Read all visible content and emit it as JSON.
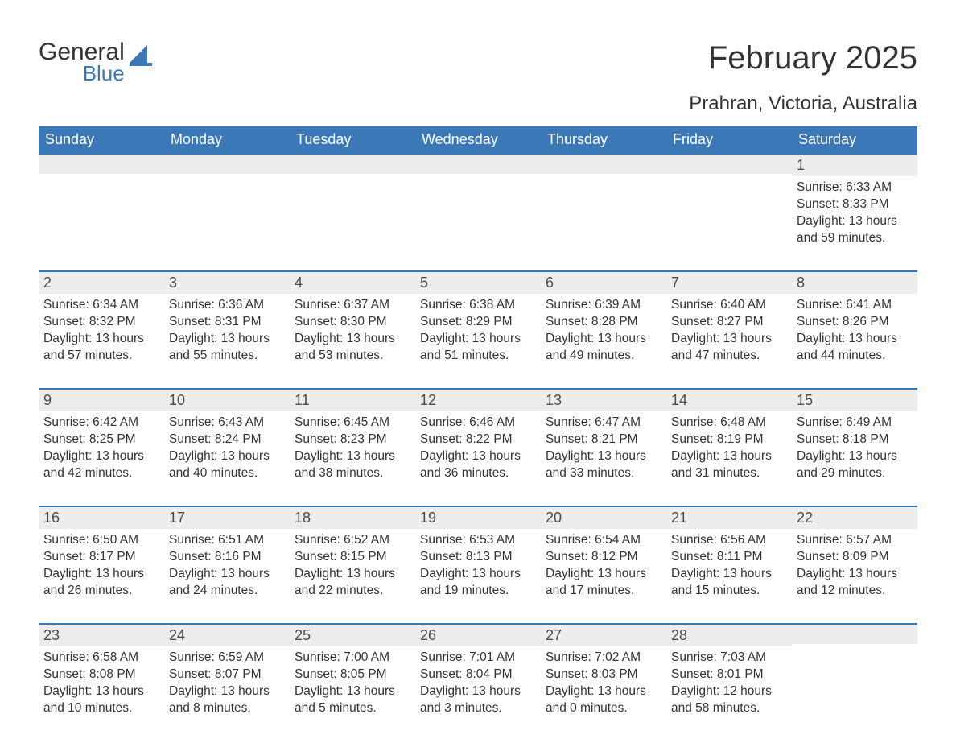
{
  "logo": {
    "top": "General",
    "bottom": "Blue",
    "icon_color": "#3a78b8"
  },
  "title": "February 2025",
  "location": "Prahran, Victoria, Australia",
  "colors": {
    "header_bg": "#3a78b8",
    "header_text": "#ffffff",
    "daynum_bg": "#ededed",
    "row_border": "#3a78b8",
    "text": "#333333",
    "background": "#ffffff"
  },
  "typography": {
    "title_fontsize": 40,
    "location_fontsize": 24,
    "header_fontsize": 18,
    "daynum_fontsize": 18,
    "detail_fontsize": 15.5
  },
  "weekdays": [
    "Sunday",
    "Monday",
    "Tuesday",
    "Wednesday",
    "Thursday",
    "Friday",
    "Saturday"
  ],
  "weeks": [
    [
      null,
      null,
      null,
      null,
      null,
      null,
      {
        "d": "1",
        "sr": "Sunrise: 6:33 AM",
        "ss": "Sunset: 8:33 PM",
        "dl1": "Daylight: 13 hours",
        "dl2": "and 59 minutes."
      }
    ],
    [
      {
        "d": "2",
        "sr": "Sunrise: 6:34 AM",
        "ss": "Sunset: 8:32 PM",
        "dl1": "Daylight: 13 hours",
        "dl2": "and 57 minutes."
      },
      {
        "d": "3",
        "sr": "Sunrise: 6:36 AM",
        "ss": "Sunset: 8:31 PM",
        "dl1": "Daylight: 13 hours",
        "dl2": "and 55 minutes."
      },
      {
        "d": "4",
        "sr": "Sunrise: 6:37 AM",
        "ss": "Sunset: 8:30 PM",
        "dl1": "Daylight: 13 hours",
        "dl2": "and 53 minutes."
      },
      {
        "d": "5",
        "sr": "Sunrise: 6:38 AM",
        "ss": "Sunset: 8:29 PM",
        "dl1": "Daylight: 13 hours",
        "dl2": "and 51 minutes."
      },
      {
        "d": "6",
        "sr": "Sunrise: 6:39 AM",
        "ss": "Sunset: 8:28 PM",
        "dl1": "Daylight: 13 hours",
        "dl2": "and 49 minutes."
      },
      {
        "d": "7",
        "sr": "Sunrise: 6:40 AM",
        "ss": "Sunset: 8:27 PM",
        "dl1": "Daylight: 13 hours",
        "dl2": "and 47 minutes."
      },
      {
        "d": "8",
        "sr": "Sunrise: 6:41 AM",
        "ss": "Sunset: 8:26 PM",
        "dl1": "Daylight: 13 hours",
        "dl2": "and 44 minutes."
      }
    ],
    [
      {
        "d": "9",
        "sr": "Sunrise: 6:42 AM",
        "ss": "Sunset: 8:25 PM",
        "dl1": "Daylight: 13 hours",
        "dl2": "and 42 minutes."
      },
      {
        "d": "10",
        "sr": "Sunrise: 6:43 AM",
        "ss": "Sunset: 8:24 PM",
        "dl1": "Daylight: 13 hours",
        "dl2": "and 40 minutes."
      },
      {
        "d": "11",
        "sr": "Sunrise: 6:45 AM",
        "ss": "Sunset: 8:23 PM",
        "dl1": "Daylight: 13 hours",
        "dl2": "and 38 minutes."
      },
      {
        "d": "12",
        "sr": "Sunrise: 6:46 AM",
        "ss": "Sunset: 8:22 PM",
        "dl1": "Daylight: 13 hours",
        "dl2": "and 36 minutes."
      },
      {
        "d": "13",
        "sr": "Sunrise: 6:47 AM",
        "ss": "Sunset: 8:21 PM",
        "dl1": "Daylight: 13 hours",
        "dl2": "and 33 minutes."
      },
      {
        "d": "14",
        "sr": "Sunrise: 6:48 AM",
        "ss": "Sunset: 8:19 PM",
        "dl1": "Daylight: 13 hours",
        "dl2": "and 31 minutes."
      },
      {
        "d": "15",
        "sr": "Sunrise: 6:49 AM",
        "ss": "Sunset: 8:18 PM",
        "dl1": "Daylight: 13 hours",
        "dl2": "and 29 minutes."
      }
    ],
    [
      {
        "d": "16",
        "sr": "Sunrise: 6:50 AM",
        "ss": "Sunset: 8:17 PM",
        "dl1": "Daylight: 13 hours",
        "dl2": "and 26 minutes."
      },
      {
        "d": "17",
        "sr": "Sunrise: 6:51 AM",
        "ss": "Sunset: 8:16 PM",
        "dl1": "Daylight: 13 hours",
        "dl2": "and 24 minutes."
      },
      {
        "d": "18",
        "sr": "Sunrise: 6:52 AM",
        "ss": "Sunset: 8:15 PM",
        "dl1": "Daylight: 13 hours",
        "dl2": "and 22 minutes."
      },
      {
        "d": "19",
        "sr": "Sunrise: 6:53 AM",
        "ss": "Sunset: 8:13 PM",
        "dl1": "Daylight: 13 hours",
        "dl2": "and 19 minutes."
      },
      {
        "d": "20",
        "sr": "Sunrise: 6:54 AM",
        "ss": "Sunset: 8:12 PM",
        "dl1": "Daylight: 13 hours",
        "dl2": "and 17 minutes."
      },
      {
        "d": "21",
        "sr": "Sunrise: 6:56 AM",
        "ss": "Sunset: 8:11 PM",
        "dl1": "Daylight: 13 hours",
        "dl2": "and 15 minutes."
      },
      {
        "d": "22",
        "sr": "Sunrise: 6:57 AM",
        "ss": "Sunset: 8:09 PM",
        "dl1": "Daylight: 13 hours",
        "dl2": "and 12 minutes."
      }
    ],
    [
      {
        "d": "23",
        "sr": "Sunrise: 6:58 AM",
        "ss": "Sunset: 8:08 PM",
        "dl1": "Daylight: 13 hours",
        "dl2": "and 10 minutes."
      },
      {
        "d": "24",
        "sr": "Sunrise: 6:59 AM",
        "ss": "Sunset: 8:07 PM",
        "dl1": "Daylight: 13 hours",
        "dl2": "and 8 minutes."
      },
      {
        "d": "25",
        "sr": "Sunrise: 7:00 AM",
        "ss": "Sunset: 8:05 PM",
        "dl1": "Daylight: 13 hours",
        "dl2": "and 5 minutes."
      },
      {
        "d": "26",
        "sr": "Sunrise: 7:01 AM",
        "ss": "Sunset: 8:04 PM",
        "dl1": "Daylight: 13 hours",
        "dl2": "and 3 minutes."
      },
      {
        "d": "27",
        "sr": "Sunrise: 7:02 AM",
        "ss": "Sunset: 8:03 PM",
        "dl1": "Daylight: 13 hours",
        "dl2": "and 0 minutes."
      },
      {
        "d": "28",
        "sr": "Sunrise: 7:03 AM",
        "ss": "Sunset: 8:01 PM",
        "dl1": "Daylight: 12 hours",
        "dl2": "and 58 minutes."
      },
      null
    ]
  ]
}
